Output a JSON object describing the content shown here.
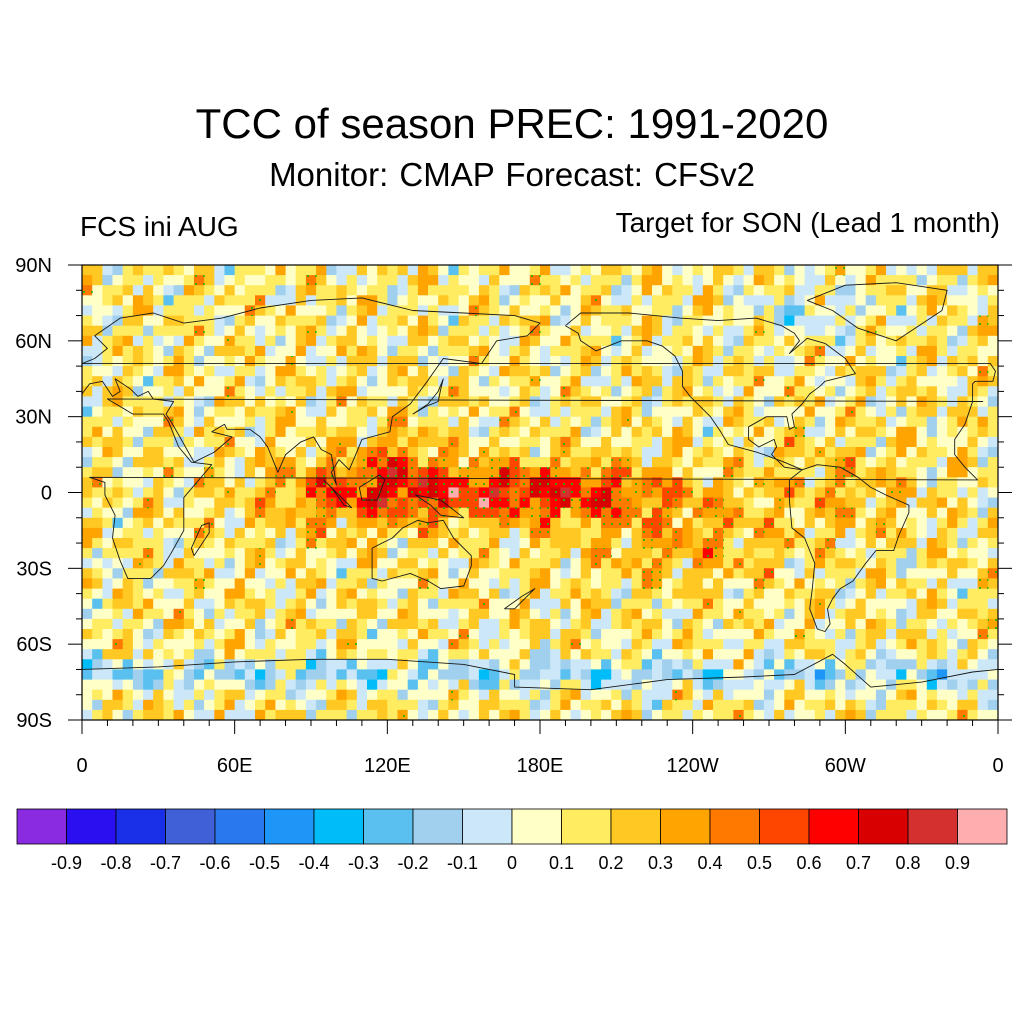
{
  "header": {
    "title": "TCC of season PREC: 1991-2020",
    "subtitle": "Monitor: CMAP   Forecast: CFSv2",
    "left_label": "FCS ini AUG",
    "right_label": "Target for SON (Lead 1 month)"
  },
  "map": {
    "projection": "cylindrical-equidistant",
    "lon_range": [
      0,
      360
    ],
    "lat_range": [
      -90,
      90
    ],
    "stippling": "green dots mark significant correlations",
    "lat_ticks": [
      {
        "value": 90,
        "label": "90N"
      },
      {
        "value": 60,
        "label": "60N"
      },
      {
        "value": 30,
        "label": "30N"
      },
      {
        "value": 0,
        "label": "0"
      },
      {
        "value": -30,
        "label": "30S"
      },
      {
        "value": -60,
        "label": "60S"
      },
      {
        "value": -90,
        "label": "90S"
      }
    ],
    "lon_ticks": [
      {
        "value": 0,
        "label": "0"
      },
      {
        "value": 60,
        "label": "60E"
      },
      {
        "value": 120,
        "label": "120E"
      },
      {
        "value": 180,
        "label": "180E"
      },
      {
        "value": 240,
        "label": "120W"
      },
      {
        "value": 300,
        "label": "60W"
      },
      {
        "value": 360,
        "label": "0"
      }
    ]
  },
  "colorbar": {
    "colors": [
      "#8a2be2",
      "#2a10f0",
      "#1a30e8",
      "#4060d8",
      "#2a78ee",
      "#1e96f8",
      "#00bcf8",
      "#5ac0f0",
      "#a0d0ee",
      "#cce8f8",
      "#ffffc8",
      "#ffec60",
      "#ffc822",
      "#ffa400",
      "#ff7800",
      "#ff4600",
      "#ff0000",
      "#d80000",
      "#d43030",
      "#ffaeb0"
    ],
    "labels": [
      "-0.9",
      "-0.8",
      "-0.7",
      "-0.6",
      "-0.5",
      "-0.4",
      "-0.3",
      "-0.2",
      "-0.1",
      "0",
      "0.1",
      "0.2",
      "0.3",
      "0.4",
      "0.5",
      "0.6",
      "0.7",
      "0.8",
      "0.9"
    ]
  }
}
